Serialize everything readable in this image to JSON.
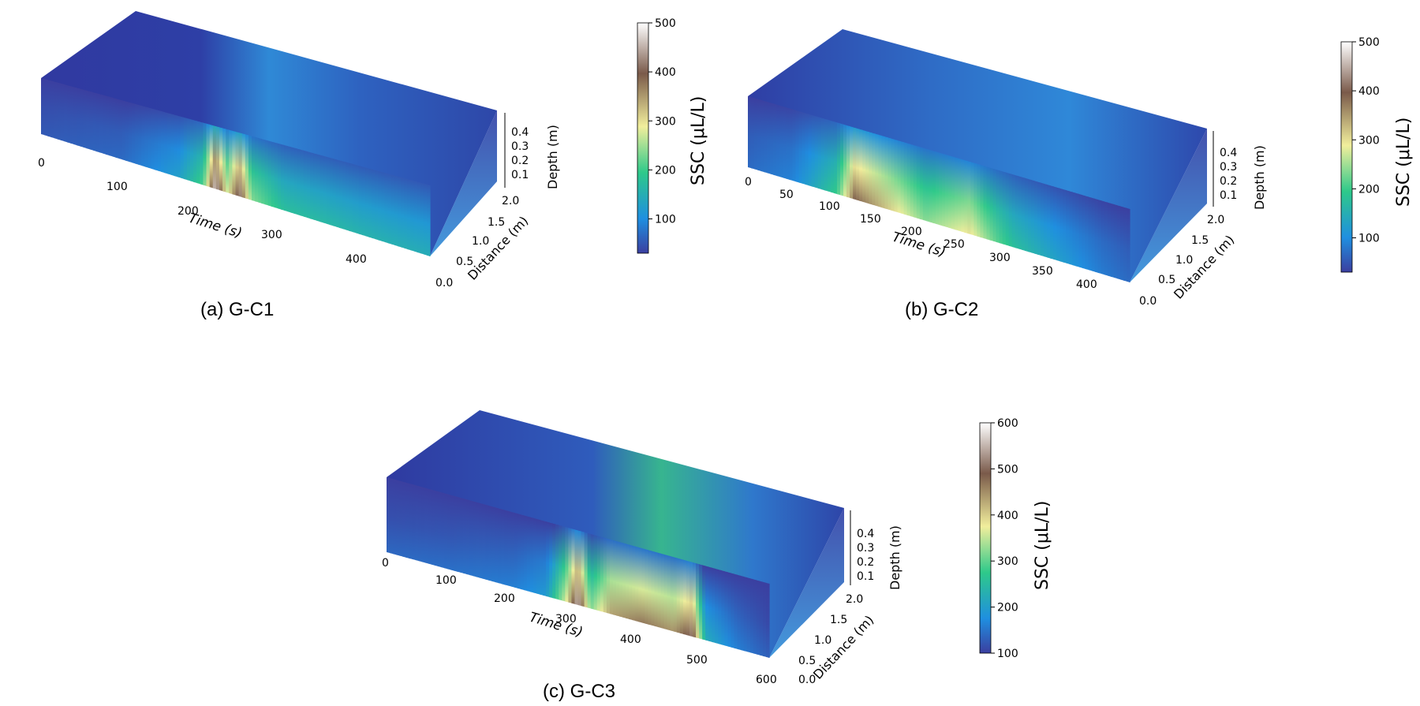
{
  "figure": {
    "panels": [
      {
        "id": "a",
        "caption": "(a) G-C1",
        "time_ticks": [
          "0",
          "100",
          "200",
          "300",
          "400"
        ],
        "time_label": "Time (s)",
        "distance_ticks": [
          "0.0",
          "0.5",
          "1.0",
          "1.5",
          "2.0"
        ],
        "distance_label": "Distance (m)",
        "depth_ticks": [
          "0.4",
          "0.3",
          "0.2",
          "0.1"
        ],
        "depth_label": "Depth (m)",
        "colorbar": {
          "label": "SSC (μL/L)",
          "ticks": [
            "500",
            "400",
            "300",
            "200",
            "100"
          ]
        }
      },
      {
        "id": "b",
        "caption": "(b) G-C2",
        "time_ticks": [
          "0",
          "50",
          "100",
          "150",
          "200",
          "250",
          "300",
          "350",
          "400"
        ],
        "time_label": "Time (s)",
        "distance_ticks": [
          "0.0",
          "0.5",
          "1.0",
          "1.5",
          "2.0"
        ],
        "distance_label": "Distance (m)",
        "depth_ticks": [
          "0.4",
          "0.3",
          "0.2",
          "0.1"
        ],
        "depth_label": "Depth (m)",
        "colorbar": {
          "label": "SSC (μL/L)",
          "ticks": [
            "500",
            "400",
            "300",
            "200",
            "100"
          ]
        }
      },
      {
        "id": "c",
        "caption": "(c) G-C3",
        "time_ticks": [
          "0",
          "100",
          "200",
          "300",
          "400",
          "500",
          "600"
        ],
        "time_label": "Time (s)",
        "distance_ticks": [
          "0.0",
          "0.5",
          "1.0",
          "1.5",
          "2.0"
        ],
        "distance_label": "Distance (m)",
        "depth_ticks": [
          "0.4",
          "0.3",
          "0.2",
          "0.1"
        ],
        "depth_label": "Depth (m)",
        "colorbar": {
          "label": "SSC (μL/L)",
          "ticks": [
            "600",
            "500",
            "400",
            "300",
            "200",
            "100"
          ]
        }
      }
    ]
  },
  "chart_data": [
    {
      "type": "heatmap",
      "title": "(a) G-C1",
      "xlabel": "Time (s)",
      "ylabel": "Distance (m)",
      "zlabel": "Depth (m)",
      "xlim": [
        0,
        480
      ],
      "ylim": [
        0,
        2.0
      ],
      "zlim": [
        0,
        0.45
      ],
      "colorbar": {
        "label": "SSC (μL/L)",
        "range": [
          30,
          500
        ],
        "colormap": [
          "#3b3fa0",
          "#1f8fe0",
          "#2ec98a",
          "#f1ee9c",
          "#7a5a4a",
          "#ffffff"
        ]
      },
      "ssc_profile_side": {
        "time": [
          0,
          100,
          170,
          200,
          215,
          230,
          245,
          260,
          280,
          300,
          350,
          400,
          480
        ],
        "ssc": [
          60,
          80,
          150,
          230,
          470,
          300,
          440,
          260,
          230,
          200,
          190,
          180,
          170
        ]
      }
    },
    {
      "type": "heatmap",
      "title": "(b) G-C2",
      "xlabel": "Time (s)",
      "ylabel": "Distance (m)",
      "zlabel": "Depth (m)",
      "xlim": [
        0,
        430
      ],
      "ylim": [
        0,
        2.0
      ],
      "zlim": [
        0,
        0.45
      ],
      "colorbar": {
        "label": "SSC (μL/L)",
        "range": [
          30,
          500
        ],
        "colormap": [
          "#3b3fa0",
          "#1f8fe0",
          "#2ec98a",
          "#f1ee9c",
          "#7a5a4a",
          "#ffffff"
        ]
      },
      "ssc_profile_side": {
        "time": [
          0,
          50,
          100,
          120,
          150,
          200,
          250,
          280,
          300,
          350,
          400,
          430
        ],
        "ssc": [
          80,
          110,
          220,
          400,
          350,
          260,
          320,
          240,
          200,
          150,
          100,
          80
        ]
      }
    },
    {
      "type": "heatmap",
      "title": "(c) G-C3",
      "xlabel": "Time (s)",
      "ylabel": "Distance (m)",
      "zlabel": "Depth (m)",
      "xlim": [
        0,
        600
      ],
      "ylim": [
        0,
        2.0
      ],
      "zlim": [
        0,
        0.45
      ],
      "colorbar": {
        "label": "SSC (μL/L)",
        "range": [
          100,
          600
        ],
        "colormap": [
          "#3b3fa0",
          "#1f8fe0",
          "#2ec98a",
          "#f1ee9c",
          "#7a5a4a",
          "#ffffff"
        ]
      },
      "ssc_profile_side": {
        "time": [
          0,
          100,
          200,
          250,
          280,
          300,
          320,
          350,
          400,
          450,
          480,
          500,
          550,
          600
        ],
        "ssc": [
          150,
          160,
          180,
          220,
          380,
          560,
          340,
          450,
          480,
          460,
          520,
          250,
          180,
          140
        ]
      }
    }
  ]
}
